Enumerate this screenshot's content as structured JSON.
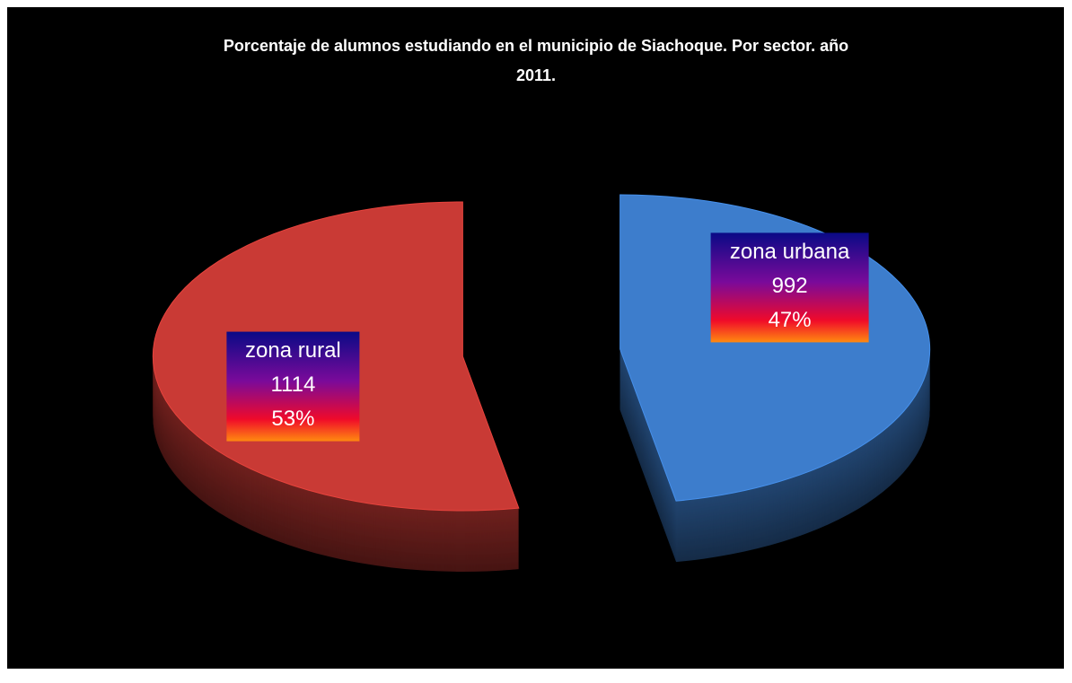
{
  "chart_data": {
    "type": "pie",
    "title": "Porcentaje de alumnos estudiando en el municipio de Siachoque. Por sector. año 2011.",
    "categories": [
      "zona urbana",
      "zona rural"
    ],
    "values": [
      992,
      1114
    ],
    "percentages": [
      47,
      53
    ],
    "percentage_labels": [
      "47%",
      "53%"
    ],
    "colors": [
      "#3d7dcc",
      "#c93a35"
    ],
    "three_d": true,
    "exploded": true
  }
}
